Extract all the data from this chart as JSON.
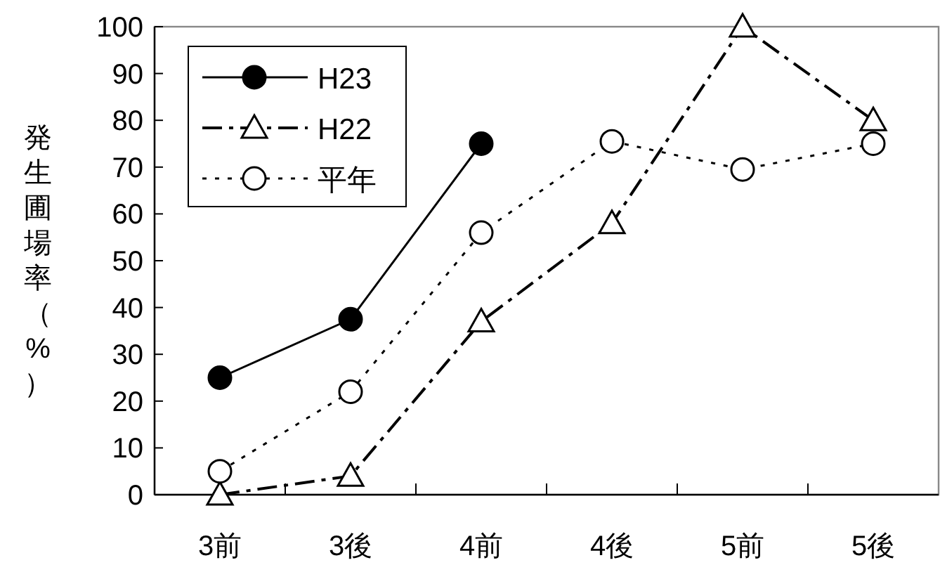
{
  "chart_data": {
    "type": "line",
    "ylabel": "発生圃場率（%）",
    "categories": [
      "3前",
      "3後",
      "4前",
      "4後",
      "5前",
      "5後"
    ],
    "series": [
      {
        "name": "H23",
        "color": "#000000",
        "marker": "circle",
        "line_style": "solid",
        "values": [
          25,
          37.5,
          75,
          null,
          null,
          null
        ]
      },
      {
        "name": "H22",
        "color": "#000000",
        "marker": "triangle",
        "line_style": "dashed",
        "values": [
          0,
          4,
          37,
          58,
          100,
          80
        ]
      },
      {
        "name": "平年",
        "color": "#000000",
        "marker": "circle",
        "line_style": "dotted",
        "values": [
          5,
          22,
          56,
          75.5,
          69.5,
          75
        ]
      }
    ],
    "ylim": [
      0,
      100
    ],
    "yticks": [
      0,
      10,
      20,
      30,
      40,
      50,
      60,
      70,
      80,
      90,
      100
    ],
    "grid": false,
    "legend": "top left"
  }
}
